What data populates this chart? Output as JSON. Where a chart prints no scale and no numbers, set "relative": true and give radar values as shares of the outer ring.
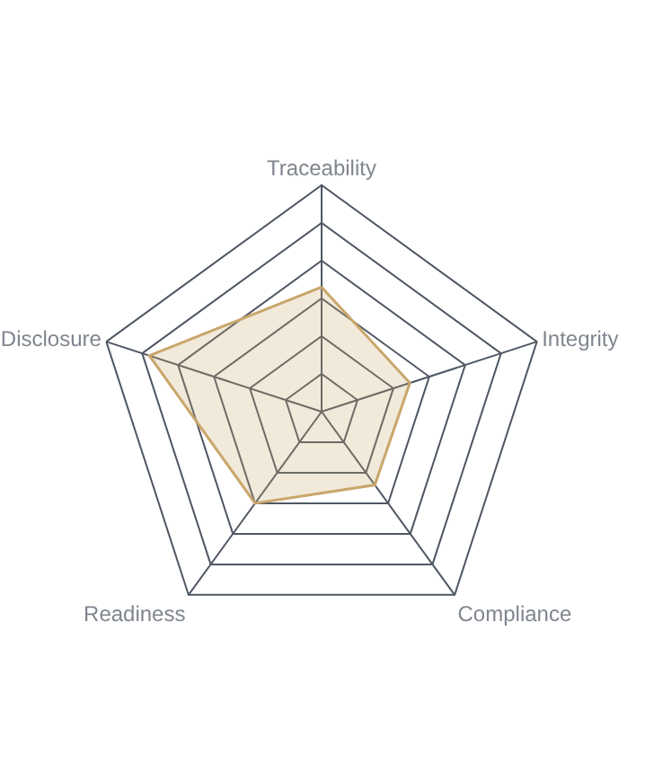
{
  "chart_data": {
    "type": "radar",
    "relative": true,
    "grid": true,
    "categories": [
      "Traceability",
      "Integrity",
      "Compliance",
      "Readiness",
      "Disclosure"
    ],
    "series": [
      {
        "color": "#c9a66b",
        "values": [
          0.55,
          0.41,
          0.4,
          0.5,
          0.8
        ]
      }
    ]
  }
}
